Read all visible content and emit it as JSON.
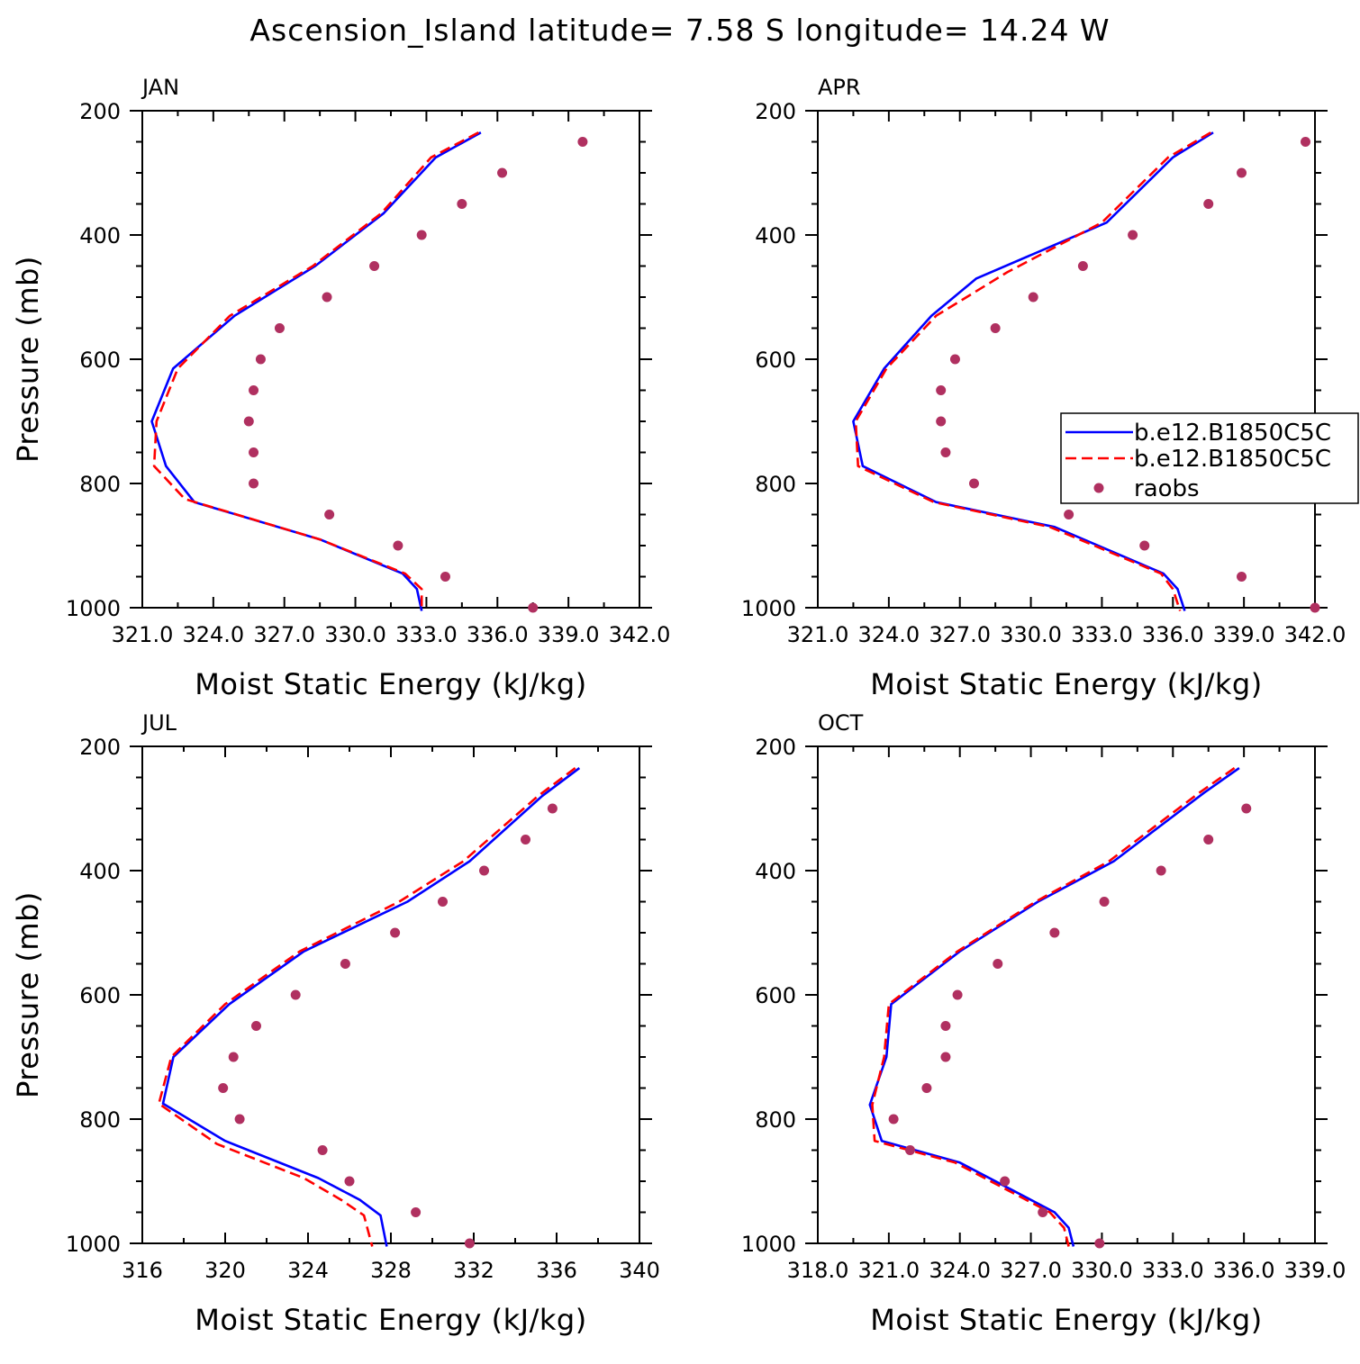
{
  "title": "Ascension_Island  latitude= 7.58 S longitude= 14.24 W",
  "colors": {
    "model1": "#0000ff",
    "model2": "#ff0000",
    "raobs": "#b03060"
  },
  "legend": {
    "entries": [
      {
        "label": "b.e12.B1850C5C",
        "style": "solid"
      },
      {
        "label": "b.e12.B1850C5C",
        "style": "dashed"
      },
      {
        "label": "raobs",
        "style": "marker"
      }
    ]
  },
  "chart_data": [
    {
      "type": "line",
      "title": "JAN",
      "xlabel": "Moist Static Energy (kJ/kg)",
      "ylabel": "Pressure (mb)",
      "xlim": [
        321,
        342
      ],
      "ylim": [
        200,
        1000
      ],
      "y_inverted": true,
      "xticks": [
        321,
        324,
        327,
        330,
        333,
        336,
        339,
        342
      ],
      "xtick_labels": [
        "321.0",
        "324.0",
        "327.0",
        "330.0",
        "333.0",
        "336.0",
        "339.0",
        "342.0"
      ],
      "yticks": [
        200,
        400,
        600,
        800,
        1000
      ],
      "ytick_labels": [
        "200",
        "400",
        "600",
        "800",
        "1000"
      ],
      "series": [
        {
          "name": "b.e12.B1850C5C",
          "style": "solid",
          "x": [
            335.3,
            333.4,
            331.2,
            328.3,
            324.9,
            322.3,
            321.4,
            322.0,
            323.2,
            328.5,
            332.0,
            332.6,
            332.8
          ],
          "y": [
            235,
            275,
            365,
            450,
            530,
            615,
            700,
            772,
            830,
            890,
            945,
            970,
            1005
          ]
        },
        {
          "name": "b.e12.B1850C5C",
          "style": "dashed",
          "x": [
            335.2,
            333.2,
            331.1,
            328.2,
            324.7,
            322.5,
            321.6,
            321.5,
            322.8,
            328.5,
            332.1,
            332.8,
            332.8
          ],
          "y": [
            235,
            275,
            365,
            450,
            530,
            615,
            700,
            772,
            825,
            890,
            945,
            970,
            1000
          ]
        },
        {
          "name": "raobs",
          "style": "marker",
          "x": [
            339.6,
            336.2,
            334.5,
            332.8,
            330.8,
            328.8,
            326.8,
            326.0,
            325.7,
            325.5,
            325.7,
            325.7,
            328.9,
            331.8,
            333.8,
            337.5
          ],
          "y": [
            250,
            300,
            350,
            400,
            450,
            500,
            550,
            600,
            650,
            700,
            750,
            800,
            850,
            900,
            950,
            1000
          ]
        }
      ]
    },
    {
      "type": "line",
      "title": "APR",
      "xlabel": "Moist Static Energy (kJ/kg)",
      "ylabel": "",
      "xlim": [
        321,
        342
      ],
      "ylim": [
        200,
        1000
      ],
      "y_inverted": true,
      "xticks": [
        321,
        324,
        327,
        330,
        333,
        336,
        339,
        342
      ],
      "xtick_labels": [
        "321.0",
        "324.0",
        "327.0",
        "330.0",
        "333.0",
        "336.0",
        "339.0",
        "342.0"
      ],
      "yticks": [
        200,
        400,
        600,
        800,
        1000
      ],
      "ytick_labels": [
        "200",
        "400",
        "600",
        "800",
        "1000"
      ],
      "series": [
        {
          "name": "b.e12.B1850C5C",
          "style": "solid",
          "x": [
            337.7,
            336.0,
            333.2,
            327.7,
            325.8,
            323.8,
            322.5,
            322.9,
            326.0,
            331.0,
            335.6,
            336.2,
            336.5
          ],
          "y": [
            235,
            275,
            380,
            470,
            530,
            615,
            700,
            772,
            830,
            870,
            945,
            970,
            1005
          ]
        },
        {
          "name": "b.e12.B1850C5C",
          "style": "dashed",
          "x": [
            337.6,
            335.8,
            333.0,
            329.0,
            326.0,
            323.9,
            322.6,
            322.7,
            325.9,
            330.8,
            335.5,
            336.0,
            336.3
          ],
          "y": [
            235,
            275,
            380,
            460,
            530,
            615,
            700,
            772,
            830,
            870,
            945,
            970,
            1005
          ]
        },
        {
          "name": "raobs",
          "style": "marker",
          "x": [
            341.6,
            338.9,
            337.5,
            334.3,
            332.2,
            330.1,
            328.5,
            326.8,
            326.2,
            326.2,
            326.4,
            327.6,
            331.6,
            334.8,
            338.9,
            342.0
          ],
          "y": [
            250,
            300,
            350,
            400,
            450,
            500,
            550,
            600,
            650,
            700,
            750,
            800,
            850,
            900,
            950,
            1000
          ]
        }
      ]
    },
    {
      "type": "line",
      "title": "JUL",
      "xlabel": "Moist Static Energy (kJ/kg)",
      "ylabel": "Pressure (mb)",
      "xlim": [
        316,
        340
      ],
      "ylim": [
        200,
        1000
      ],
      "y_inverted": true,
      "xticks": [
        316,
        320,
        324,
        328,
        332,
        336,
        340
      ],
      "xtick_labels": [
        "316",
        "320",
        "324",
        "328",
        "332",
        "336",
        "340"
      ],
      "yticks": [
        200,
        400,
        600,
        800,
        1000
      ],
      "ytick_labels": [
        "200",
        "400",
        "600",
        "800",
        "1000"
      ],
      "series": [
        {
          "name": "b.e12.B1850C5C",
          "style": "solid",
          "x": [
            337.1,
            335.3,
            331.8,
            328.8,
            323.8,
            320.2,
            317.5,
            317.0,
            320.0,
            324.5,
            326.5,
            327.5,
            327.8
          ],
          "y": [
            235,
            280,
            385,
            450,
            530,
            615,
            700,
            775,
            835,
            895,
            930,
            955,
            1005
          ]
        },
        {
          "name": "b.e12.B1850C5C",
          "style": "dashed",
          "x": [
            336.9,
            335.1,
            331.5,
            328.4,
            323.6,
            320.0,
            317.4,
            316.8,
            319.6,
            323.8,
            325.6,
            326.7,
            327.1
          ],
          "y": [
            235,
            280,
            385,
            450,
            530,
            615,
            700,
            775,
            840,
            895,
            930,
            955,
            1005
          ]
        },
        {
          "name": "raobs",
          "style": "marker",
          "x": [
            335.8,
            334.5,
            332.5,
            330.5,
            328.2,
            325.8,
            323.4,
            321.5,
            320.4,
            319.9,
            320.7,
            324.7,
            326.0,
            329.2,
            331.8
          ],
          "y": [
            300,
            350,
            400,
            450,
            500,
            550,
            600,
            650,
            700,
            750,
            800,
            850,
            900,
            950,
            1000
          ]
        }
      ]
    },
    {
      "type": "line",
      "title": "OCT",
      "xlabel": "Moist Static Energy (kJ/kg)",
      "ylabel": "",
      "xlim": [
        318,
        339
      ],
      "ylim": [
        200,
        1000
      ],
      "y_inverted": true,
      "xticks": [
        318,
        321,
        324,
        327,
        330,
        333,
        336,
        339
      ],
      "xtick_labels": [
        "318.0",
        "321.0",
        "324.0",
        "327.0",
        "330.0",
        "333.0",
        "336.0",
        "339.0"
      ],
      "yticks": [
        200,
        400,
        600,
        800,
        1000
      ],
      "ytick_labels": [
        "200",
        "400",
        "600",
        "800",
        "1000"
      ],
      "series": [
        {
          "name": "b.e12.B1850C5C",
          "style": "solid",
          "x": [
            335.8,
            334.3,
            330.5,
            327.3,
            324.0,
            321.1,
            320.9,
            320.2,
            320.7,
            324.0,
            328.0,
            328.6,
            328.8
          ],
          "y": [
            235,
            275,
            385,
            450,
            530,
            615,
            700,
            777,
            835,
            870,
            950,
            975,
            1005
          ]
        },
        {
          "name": "b.e12.B1850C5C",
          "style": "dashed",
          "x": [
            335.6,
            334.1,
            330.3,
            327.2,
            323.9,
            321.0,
            320.8,
            320.3,
            320.4,
            323.8,
            327.8,
            328.4,
            328.6
          ],
          "y": [
            235,
            275,
            385,
            450,
            530,
            615,
            700,
            777,
            835,
            870,
            950,
            975,
            1005
          ]
        },
        {
          "name": "raobs",
          "style": "marker",
          "x": [
            336.1,
            334.5,
            332.5,
            330.1,
            328.0,
            325.6,
            323.9,
            323.4,
            323.4,
            322.6,
            321.2,
            321.9,
            325.9,
            327.5,
            329.9
          ],
          "y": [
            300,
            350,
            400,
            450,
            500,
            550,
            600,
            650,
            700,
            750,
            800,
            850,
            900,
            950,
            1000
          ]
        }
      ]
    }
  ]
}
